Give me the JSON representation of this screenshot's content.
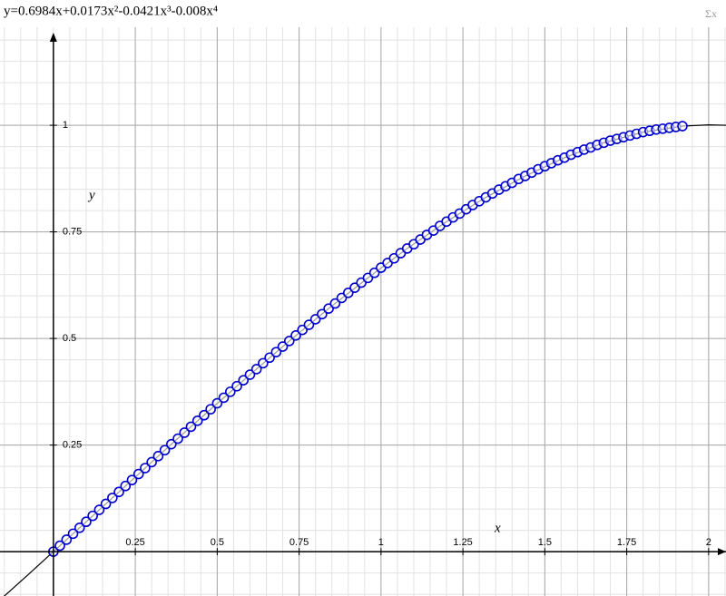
{
  "chart_data": {
    "type": "scatter",
    "title": "y=0.6984x+0.0173x²-0.0421x³-0.008x⁴",
    "toolbar_icon": "Σx",
    "x_label": "x",
    "y_label": "y",
    "xlim": [
      -0.163,
      2.053
    ],
    "ylim": [
      -0.104,
      1.23
    ],
    "xticks": [
      0.25,
      0.5,
      0.75,
      1,
      1.25,
      1.5,
      1.75,
      2
    ],
    "yticks": [
      0.25,
      0.5,
      0.75,
      1
    ],
    "minor_step": 0.05,
    "grid": true,
    "series": [
      {
        "kind": "line",
        "color": "#000000",
        "x": [
          -0.17,
          -0.08,
          0,
          0.12,
          0.24,
          0.36,
          0.48,
          0.6,
          0.72,
          0.84,
          0.96,
          1.08,
          1.2,
          1.32,
          1.44,
          1.56,
          1.68,
          1.8,
          1.92,
          2.0,
          2.06
        ],
        "values": [
          -0.118,
          -0.056,
          0,
          0.084,
          0.168,
          0.252,
          0.334,
          0.415,
          0.494,
          0.57,
          0.642,
          0.711,
          0.774,
          0.831,
          0.881,
          0.924,
          0.959,
          0.984,
          0.998,
          1.001,
          1.0
        ]
      },
      {
        "kind": "points",
        "color": "#0000cc",
        "x": [
          0,
          0.02,
          0.04,
          0.06,
          0.08,
          0.1,
          0.12,
          0.14,
          0.16,
          0.18,
          0.2,
          0.22,
          0.24,
          0.26,
          0.28,
          0.3,
          0.32,
          0.34,
          0.36,
          0.38,
          0.4,
          0.42,
          0.44,
          0.46,
          0.48,
          0.5,
          0.52,
          0.54,
          0.56,
          0.58,
          0.6,
          0.62,
          0.64,
          0.66,
          0.68,
          0.7,
          0.72,
          0.74,
          0.76,
          0.78,
          0.8,
          0.82,
          0.84,
          0.86,
          0.88,
          0.9,
          0.92,
          0.94,
          0.96,
          0.98,
          1.0,
          1.02,
          1.04,
          1.06,
          1.08,
          1.1,
          1.12,
          1.14,
          1.16,
          1.18,
          1.2,
          1.22,
          1.24,
          1.26,
          1.28,
          1.3,
          1.32,
          1.34,
          1.36,
          1.38,
          1.4,
          1.42,
          1.44,
          1.46,
          1.48,
          1.5,
          1.52,
          1.54,
          1.56,
          1.58,
          1.6,
          1.62,
          1.64,
          1.66,
          1.68,
          1.7,
          1.72,
          1.74,
          1.76,
          1.78,
          1.8,
          1.82,
          1.84,
          1.86,
          1.88,
          1.9,
          1.92
        ],
        "values": [
          0,
          0.014,
          0.028,
          0.042,
          0.056,
          0.07,
          0.084,
          0.098,
          0.112,
          0.126,
          0.14,
          0.154,
          0.168,
          0.182,
          0.196,
          0.21,
          0.224,
          0.238,
          0.252,
          0.265,
          0.279,
          0.293,
          0.307,
          0.32,
          0.334,
          0.348,
          0.361,
          0.375,
          0.388,
          0.402,
          0.415,
          0.428,
          0.442,
          0.455,
          0.468,
          0.481,
          0.494,
          0.507,
          0.52,
          0.532,
          0.545,
          0.557,
          0.57,
          0.582,
          0.595,
          0.607,
          0.619,
          0.631,
          0.642,
          0.654,
          0.666,
          0.677,
          0.688,
          0.7,
          0.711,
          0.721,
          0.732,
          0.743,
          0.753,
          0.764,
          0.774,
          0.784,
          0.793,
          0.803,
          0.813,
          0.822,
          0.831,
          0.84,
          0.849,
          0.857,
          0.865,
          0.874,
          0.881,
          0.889,
          0.897,
          0.904,
          0.911,
          0.918,
          0.924,
          0.931,
          0.937,
          0.943,
          0.948,
          0.954,
          0.959,
          0.964,
          0.968,
          0.972,
          0.976,
          0.98,
          0.984,
          0.987,
          0.99,
          0.992,
          0.994,
          0.996,
          0.998
        ]
      }
    ]
  }
}
